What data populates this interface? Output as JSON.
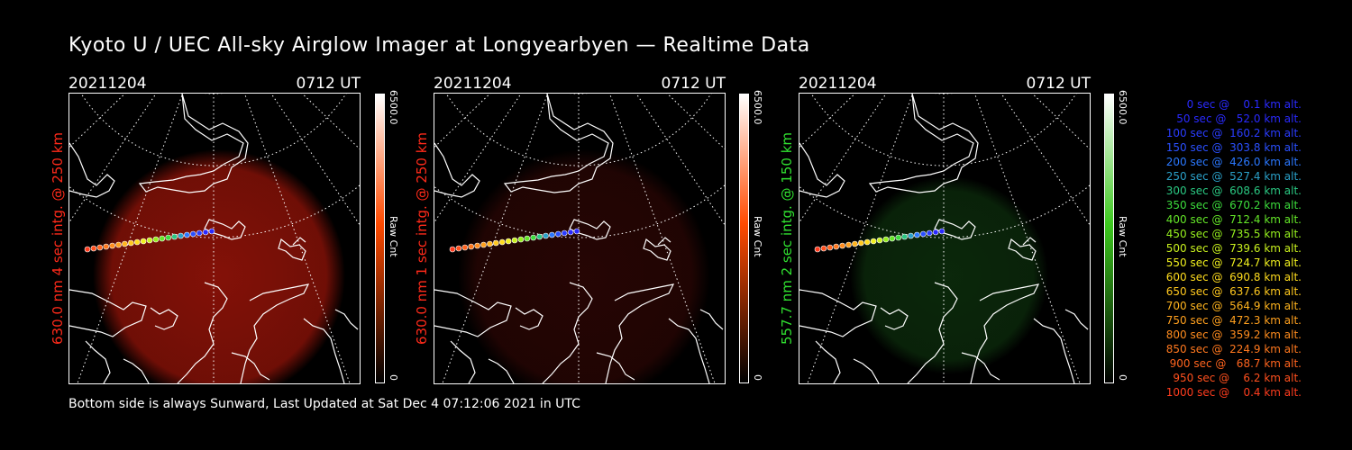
{
  "title": "Kyoto U / UEC All-sky Airglow Imager at Longyearbyen — Realtime Data",
  "panels": [
    {
      "date": "20211204",
      "time": "0712 UT",
      "label": "630.0 nm 4 sec intg. @ 250 km",
      "label_color": "#ff2a1a",
      "colorbar": {
        "max": "6500.0",
        "min": "0",
        "unit": "Raw Cnt",
        "color": "#ff4a00"
      }
    },
    {
      "date": "20211204",
      "time": "0712 UT",
      "label": "630.0 nm 1 sec intg. @ 250 km",
      "label_color": "#ff2a1a",
      "colorbar": {
        "max": "6500.0",
        "min": "0",
        "unit": "Raw Cnt",
        "color": "#ff4a00"
      }
    },
    {
      "date": "20211204",
      "time": "0712 UT",
      "label": "557.7 nm 2 sec intg. @ 150 km",
      "label_color": "#30e030",
      "colorbar": {
        "max": "6500.0",
        "min": "0",
        "unit": "Raw Cnt",
        "color": "#3cc81e"
      }
    }
  ],
  "footer": "Bottom side is always Sunward, Last Updated at Sat Dec  4 07:12:06 2021 in UTC",
  "legend": [
    {
      "text": "   0 sec @    0.1 km alt.",
      "color": "#2a2aff"
    },
    {
      "text": "  50 sec @   52.0 km alt.",
      "color": "#2a2aff"
    },
    {
      "text": " 100 sec @  160.2 km alt.",
      "color": "#2a3cff"
    },
    {
      "text": " 150 sec @  303.8 km alt.",
      "color": "#2a50ff"
    },
    {
      "text": " 200 sec @  426.0 km alt.",
      "color": "#2a78ff"
    },
    {
      "text": " 250 sec @  527.4 km alt.",
      "color": "#2aa0c8"
    },
    {
      "text": " 300 sec @  608.6 km alt.",
      "color": "#2ac882"
    },
    {
      "text": " 350 sec @  670.2 km alt.",
      "color": "#3cdc3c"
    },
    {
      "text": " 400 sec @  712.4 km alt.",
      "color": "#64e628"
    },
    {
      "text": " 450 sec @  735.5 km alt.",
      "color": "#96f01e"
    },
    {
      "text": " 500 sec @  739.6 km alt.",
      "color": "#c8f01e"
    },
    {
      "text": " 550 sec @  724.7 km alt.",
      "color": "#f0f01e"
    },
    {
      "text": " 600 sec @  690.8 km alt.",
      "color": "#ffdc1e"
    },
    {
      "text": " 650 sec @  637.6 km alt.",
      "color": "#ffc81e"
    },
    {
      "text": " 700 sec @  564.9 km alt.",
      "color": "#ffb41e"
    },
    {
      "text": " 750 sec @  472.3 km alt.",
      "color": "#ffa01e"
    },
    {
      "text": " 800 sec @  359.2 km alt.",
      "color": "#ff8c1e"
    },
    {
      "text": " 850 sec @  224.9 km alt.",
      "color": "#ff781e"
    },
    {
      "text": " 900 sec @   68.7 km alt.",
      "color": "#ff641e"
    },
    {
      "text": " 950 sec @    6.2 km alt.",
      "color": "#ff501e"
    },
    {
      "text": "1000 sec @    0.4 km alt.",
      "color": "#ff3c1e"
    }
  ],
  "glow_colors": [
    "#8a1208",
    "#2a0604",
    "#0c2c0c"
  ]
}
